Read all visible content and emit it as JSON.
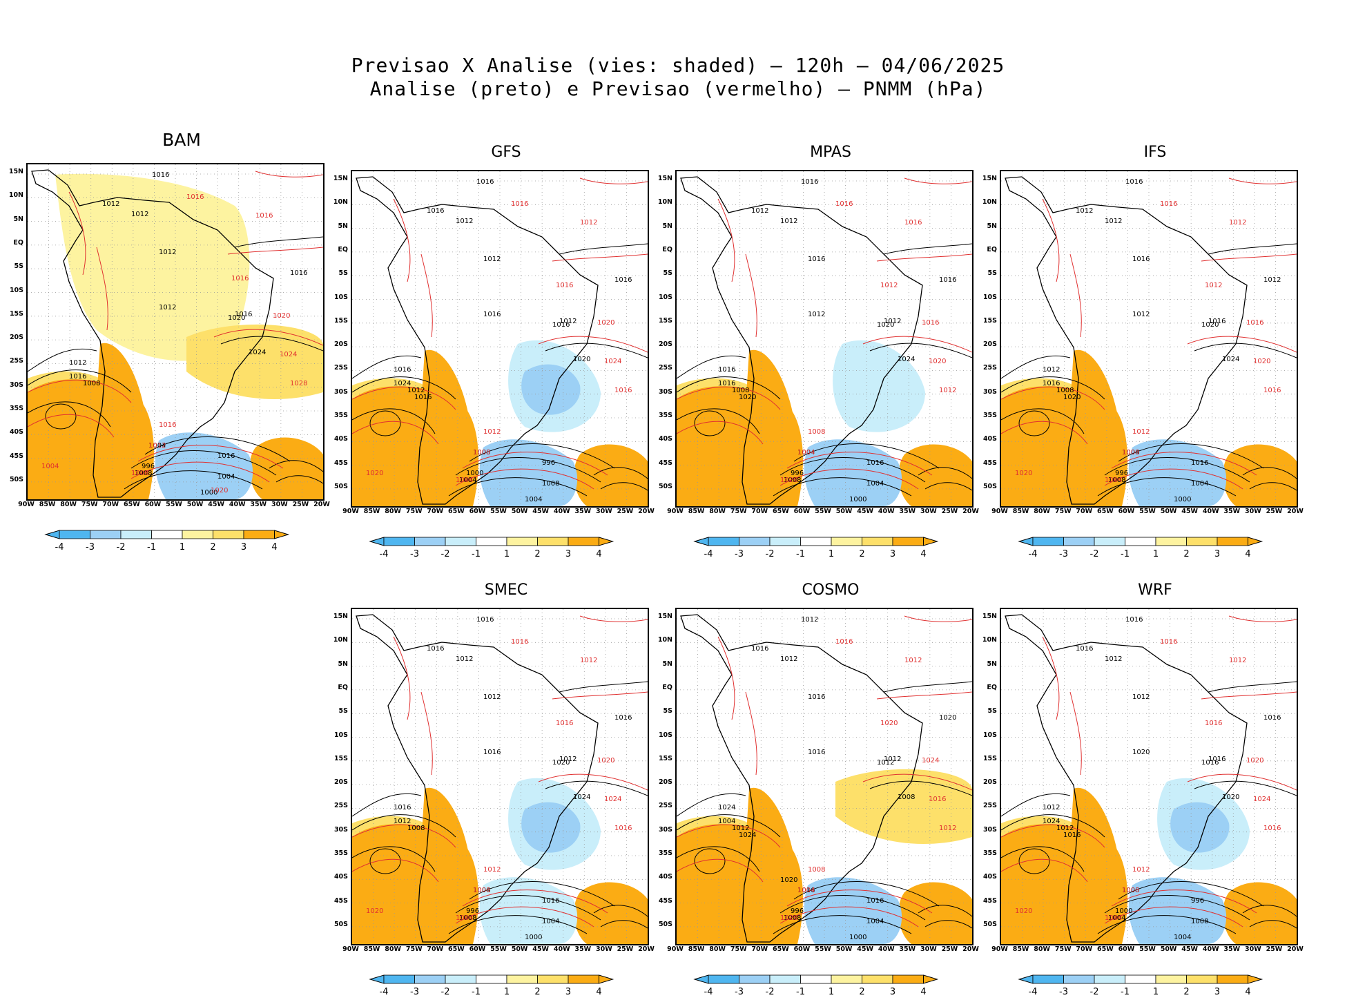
{
  "figure": {
    "title_line1": "Previsao X Analise (vies: shaded) – 120h – 04/06/2025",
    "title_line2": "Analise (preto) e Previsao (vermelho) – PNMM (hPa)"
  },
  "colors": {
    "neg4": "#4fb6f0",
    "neg3": "#9cd0f5",
    "neg2": "#c9eefa",
    "pos2": "#fdf3a0",
    "pos3": "#fde06a",
    "pos4": "#fbac14",
    "analysis_line": "#000000",
    "forecast_line": "#e03030"
  },
  "axes": {
    "lat_labels": [
      "15N",
      "10N",
      "5N",
      "EQ",
      "5S",
      "10S",
      "15S",
      "20S",
      "25S",
      "30S",
      "35S",
      "40S",
      "45S",
      "50S"
    ],
    "lon_labels": [
      "90W",
      "85W",
      "80W",
      "75W",
      "70W",
      "65W",
      "60W",
      "55W",
      "50W",
      "45W",
      "40W",
      "35W",
      "30W",
      "25W",
      "20W"
    ]
  },
  "colorbar": {
    "labels": [
      "-4",
      "-3",
      "-2",
      "-1",
      "1",
      "2",
      "3",
      "4"
    ]
  },
  "panels": [
    {
      "name": "BAM",
      "analysis_labels": [
        "1016",
        "1012",
        "1012",
        "1012",
        "1016",
        "1012",
        "1016",
        "1012",
        "1008",
        "1004",
        "1008",
        "1004",
        "1000",
        "996",
        "1016",
        "1020",
        "1024",
        "1016"
      ],
      "forecast_labels": [
        "1016",
        "1016",
        "1016",
        "1020",
        "1024",
        "1028",
        "1016",
        "1012",
        "1008",
        "1004",
        "1020"
      ]
    },
    {
      "name": "GFS",
      "analysis_labels": [
        "1016",
        "1016",
        "1012",
        "1012",
        "1016",
        "1016",
        "1012",
        "1016",
        "1012",
        "1008",
        "1004",
        "1008",
        "1004",
        "1000",
        "996",
        "1016",
        "1020",
        "1024",
        "1016"
      ],
      "forecast_labels": [
        "1016",
        "1012",
        "1016",
        "1020",
        "1024",
        "1016",
        "1012",
        "1008",
        "1004",
        "1020"
      ]
    },
    {
      "name": "MPAS",
      "analysis_labels": [
        "1016",
        "1012",
        "1012",
        "1016",
        "1016",
        "1012",
        "1012",
        "1016",
        "1008",
        "1004",
        "1008",
        "1004",
        "1000",
        "996",
        "1016",
        "1020",
        "1024",
        "1016",
        "1020"
      ],
      "forecast_labels": [
        "1016",
        "1016",
        "1012",
        "1016",
        "1020",
        "1012",
        "1008",
        "1004",
        "1020"
      ]
    },
    {
      "name": "IFS",
      "analysis_labels": [
        "1016",
        "1012",
        "1012",
        "1016",
        "1012",
        "1012",
        "1016",
        "1012",
        "1008",
        "1004",
        "1008",
        "1004",
        "1000",
        "996",
        "1016",
        "1020",
        "1024",
        "1016",
        "1020"
      ],
      "forecast_labels": [
        "1016",
        "1012",
        "1012",
        "1016",
        "1020",
        "1016",
        "1012",
        "1008",
        "1004",
        "1020"
      ]
    },
    {
      "name": "SMEC",
      "analysis_labels": [
        "1016",
        "1016",
        "1012",
        "1012",
        "1016",
        "1016",
        "1012",
        "1016",
        "1008",
        "1004",
        "1008",
        "1004",
        "1000",
        "996",
        "1016",
        "1020",
        "1024",
        "1012"
      ],
      "forecast_labels": [
        "1016",
        "1012",
        "1016",
        "1020",
        "1024",
        "1016",
        "1012",
        "1008",
        "1004",
        "1020"
      ]
    },
    {
      "name": "COSMO",
      "analysis_labels": [
        "1012",
        "1016",
        "1012",
        "1016",
        "1020",
        "1016",
        "1012",
        "1024",
        "1012",
        "1016",
        "1008",
        "1004",
        "1000",
        "996",
        "1016",
        "1012",
        "1008",
        "1004",
        "1024",
        "1020"
      ],
      "forecast_labels": [
        "1016",
        "1012",
        "1020",
        "1024",
        "1016",
        "1012",
        "1008",
        "1004",
        "1020"
      ]
    },
    {
      "name": "WRF",
      "analysis_labels": [
        "1016",
        "1016",
        "1012",
        "1012",
        "1016",
        "1020",
        "1016",
        "1012",
        "1012",
        "1008",
        "1004",
        "1008",
        "1004",
        "1000",
        "996",
        "1016",
        "1020",
        "1024",
        "1016"
      ],
      "forecast_labels": [
        "1016",
        "1012",
        "1016",
        "1020",
        "1024",
        "1016",
        "1012",
        "1008",
        "1004",
        "1020"
      ]
    }
  ]
}
